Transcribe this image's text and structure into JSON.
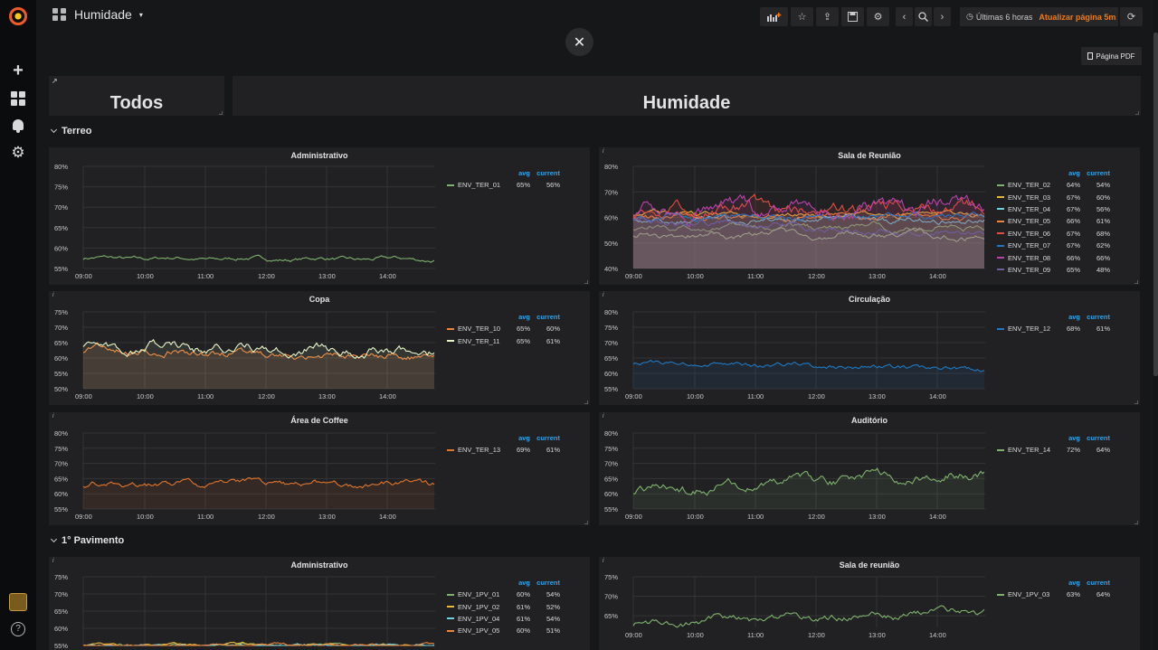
{
  "nav": {
    "dashboard_title": "Humidade",
    "time_range": "Últimas 6 horas",
    "refresh": "Atualizar página 5m"
  },
  "pdf_button": "Página PDF",
  "close_symbol": "✕",
  "header_panels": [
    "Todos",
    "Humidade"
  ],
  "rows": [
    "Terreo",
    "1° Pavimento"
  ],
  "x_ticks": [
    "09:00",
    "10:00",
    "11:00",
    "12:00",
    "13:00",
    "14:00"
  ],
  "legend_head": {
    "avg": "avg",
    "current": "current"
  },
  "panels": [
    {
      "title": "Administrativo",
      "y_ticks": [
        "80%",
        "75%",
        "70%",
        "65%",
        "60%",
        "55%"
      ],
      "ylim": [
        55,
        80
      ],
      "series": [
        {
          "name": "ENV_TER_01",
          "avg": "65%",
          "current": "56%",
          "color": "#7eb26d",
          "base": 57.5,
          "amp": 0.6,
          "trend": -0.3
        }
      ]
    },
    {
      "title": "Sala de Reunião",
      "y_ticks": [
        "80%",
        "70%",
        "60%",
        "50%",
        "40%"
      ],
      "ylim": [
        40,
        80
      ],
      "fill": true,
      "series": [
        {
          "name": "ENV_TER_02",
          "avg": "64%",
          "current": "54%",
          "color": "#7eb26d",
          "base": 56,
          "amp": 1.5,
          "trend": 0
        },
        {
          "name": "ENV_TER_03",
          "avg": "67%",
          "current": "60%",
          "color": "#eab839",
          "base": 61,
          "amp": 1.2,
          "trend": 0
        },
        {
          "name": "ENV_TER_04",
          "avg": "67%",
          "current": "56%",
          "color": "#6ed0e0",
          "base": 59,
          "amp": 1.5,
          "trend": 0
        },
        {
          "name": "ENV_TER_05",
          "avg": "66%",
          "current": "61%",
          "color": "#ef843c",
          "base": 60,
          "amp": 1.5,
          "trend": 0
        },
        {
          "name": "ENV_TER_06",
          "avg": "67%",
          "current": "68%",
          "color": "#e24d42",
          "base": 63,
          "amp": 3,
          "trend": 0
        },
        {
          "name": "ENV_TER_07",
          "avg": "67%",
          "current": "62%",
          "color": "#1f78c1",
          "base": 60.5,
          "amp": 1.5,
          "trend": 0
        },
        {
          "name": "ENV_TER_08",
          "avg": "66%",
          "current": "66%",
          "color": "#ba43a9",
          "base": 62,
          "amp": 3.5,
          "trend": 2
        },
        {
          "name": "ENV_TER_09",
          "avg": "65%",
          "current": "48%",
          "color": "#705da0",
          "base": 59,
          "amp": 1.5,
          "trend": -6
        },
        {
          "name": "",
          "avg": "",
          "current": "",
          "color": "#9d9b8a",
          "base": 53,
          "amp": 1.5,
          "trend": 0,
          "unlabeled": true
        }
      ]
    },
    {
      "title": "Copa",
      "y_ticks": [
        "75%",
        "70%",
        "65%",
        "60%",
        "55%",
        "50%"
      ],
      "ylim": [
        50,
        75
      ],
      "fill": true,
      "series": [
        {
          "name": "ENV_TER_10",
          "avg": "65%",
          "current": "60%",
          "color": "#ef843c",
          "base": 62.5,
          "amp": 1.5,
          "trend": -2.5
        },
        {
          "name": "ENV_TER_11",
          "avg": "65%",
          "current": "61%",
          "color": "#e5f5c7",
          "base": 64,
          "amp": 2,
          "trend": -2.5
        }
      ]
    },
    {
      "title": "Circulação",
      "y_ticks": [
        "80%",
        "75%",
        "70%",
        "65%",
        "60%",
        "55%"
      ],
      "ylim": [
        55,
        80
      ],
      "fill": true,
      "series": [
        {
          "name": "ENV_TER_12",
          "avg": "68%",
          "current": "61%",
          "color": "#1f78c1",
          "base": 63.5,
          "amp": 1,
          "trend": -2
        }
      ]
    },
    {
      "title": "Área de Coffee",
      "y_ticks": [
        "80%",
        "75%",
        "70%",
        "65%",
        "60%",
        "55%"
      ],
      "ylim": [
        55,
        80
      ],
      "fill": true,
      "series": [
        {
          "name": "ENV_TER_13",
          "avg": "69%",
          "current": "61%",
          "color": "#e0752d",
          "base": 63,
          "amp": 1.2,
          "trend": 0.5
        }
      ]
    },
    {
      "title": "Auditório",
      "y_ticks": [
        "80%",
        "75%",
        "70%",
        "65%",
        "60%",
        "55%"
      ],
      "ylim": [
        55,
        80
      ],
      "fill": true,
      "series": [
        {
          "name": "ENV_TER_14",
          "avg": "72%",
          "current": "64%",
          "color": "#7eb26d",
          "base": 61,
          "amp": 2,
          "trend": 6
        }
      ]
    },
    {
      "title": "Administrativo",
      "y_ticks": [
        "75%",
        "70%",
        "65%",
        "60%",
        "55%"
      ],
      "ylim": [
        55,
        75
      ],
      "series": [
        {
          "name": "ENV_1PV_01",
          "avg": "60%",
          "current": "54%",
          "color": "#7eb26d",
          "base": 55,
          "amp": 0.5,
          "trend": 0
        },
        {
          "name": "ENV_1PV_02",
          "avg": "61%",
          "current": "52%",
          "color": "#eab839",
          "base": 55,
          "amp": 0.5,
          "trend": 0
        },
        {
          "name": "ENV_1PV_04",
          "avg": "61%",
          "current": "54%",
          "color": "#6ed0e0",
          "base": 55,
          "amp": 0.5,
          "trend": 0
        },
        {
          "name": "ENV_1PV_05",
          "avg": "60%",
          "current": "51%",
          "color": "#ef843c",
          "base": 55,
          "amp": 0.5,
          "trend": 0
        }
      ]
    },
    {
      "title": "Sala de reunião",
      "y_ticks": [
        "75%",
        "70%",
        "65%"
      ],
      "ylim": [
        62,
        75
      ],
      "series": [
        {
          "name": "ENV_1PV_03",
          "avg": "63%",
          "current": "64%",
          "color": "#7eb26d",
          "base": 63,
          "amp": 1.2,
          "trend": 3
        }
      ]
    }
  ]
}
